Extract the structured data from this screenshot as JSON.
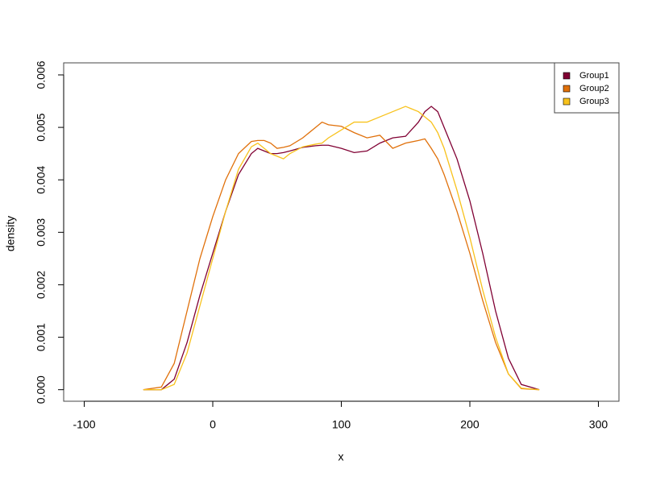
{
  "chart_data": {
    "type": "line",
    "x_label": "x",
    "y_label": "density",
    "x": [
      -54,
      -40,
      -30,
      -20,
      -10,
      0,
      10,
      20,
      30,
      35,
      40,
      45,
      50,
      55,
      60,
      70,
      80,
      85,
      90,
      100,
      110,
      120,
      130,
      140,
      150,
      160,
      165,
      170,
      175,
      180,
      190,
      200,
      210,
      220,
      230,
      240,
      254
    ],
    "series": [
      {
        "name": "Group1",
        "color": "#800033",
        "values": [
          0,
          0,
          0.0002,
          0.0009,
          0.0018,
          0.0026,
          0.0034,
          0.0041,
          0.0045,
          0.0046,
          0.00455,
          0.0045,
          0.0045,
          0.00452,
          0.00455,
          0.00462,
          0.00465,
          0.00466,
          0.00466,
          0.0046,
          0.00452,
          0.00455,
          0.0047,
          0.0048,
          0.00483,
          0.0051,
          0.0053,
          0.0054,
          0.0053,
          0.005,
          0.0044,
          0.0036,
          0.0026,
          0.0015,
          0.0006,
          0.0001,
          0
        ]
      },
      {
        "name": "Group2",
        "color": "#e0700a",
        "values": [
          0,
          5e-05,
          0.0005,
          0.0015,
          0.0025,
          0.0033,
          0.004,
          0.0045,
          0.00473,
          0.00475,
          0.00475,
          0.0047,
          0.0046,
          0.00462,
          0.00465,
          0.0048,
          0.005,
          0.0051,
          0.00505,
          0.00502,
          0.0049,
          0.0048,
          0.00485,
          0.0046,
          0.0047,
          0.00475,
          0.00478,
          0.0046,
          0.0044,
          0.0041,
          0.0034,
          0.0026,
          0.0017,
          0.0009,
          0.0003,
          2e-05,
          0
        ]
      },
      {
        "name": "Group3",
        "color": "#f8c21c",
        "values": [
          0,
          0,
          0.0001,
          0.0007,
          0.0016,
          0.0025,
          0.0034,
          0.0042,
          0.00463,
          0.0047,
          0.0046,
          0.0045,
          0.00445,
          0.0044,
          0.0045,
          0.00463,
          0.00468,
          0.0047,
          0.0048,
          0.00495,
          0.0051,
          0.0051,
          0.0052,
          0.0053,
          0.0054,
          0.0053,
          0.0052,
          0.0051,
          0.0049,
          0.0046,
          0.0038,
          0.0029,
          0.0019,
          0.001,
          0.0003,
          3e-05,
          0
        ]
      }
    ],
    "xlim": [
      -116,
      316
    ],
    "ylim": [
      -0.00022,
      0.00623
    ],
    "xticks": [
      -100,
      0,
      100,
      200,
      300
    ],
    "yticks": [
      {
        "value": 0,
        "label": "0.000"
      },
      {
        "value": 0.001,
        "label": "0.001"
      },
      {
        "value": 0.002,
        "label": "0.002"
      },
      {
        "value": 0.003,
        "label": "0.003"
      },
      {
        "value": 0.004,
        "label": "0.004"
      },
      {
        "value": 0.005,
        "label": "0.005"
      },
      {
        "value": 0.006,
        "label": "0.006"
      }
    ],
    "legend": "top-right"
  }
}
